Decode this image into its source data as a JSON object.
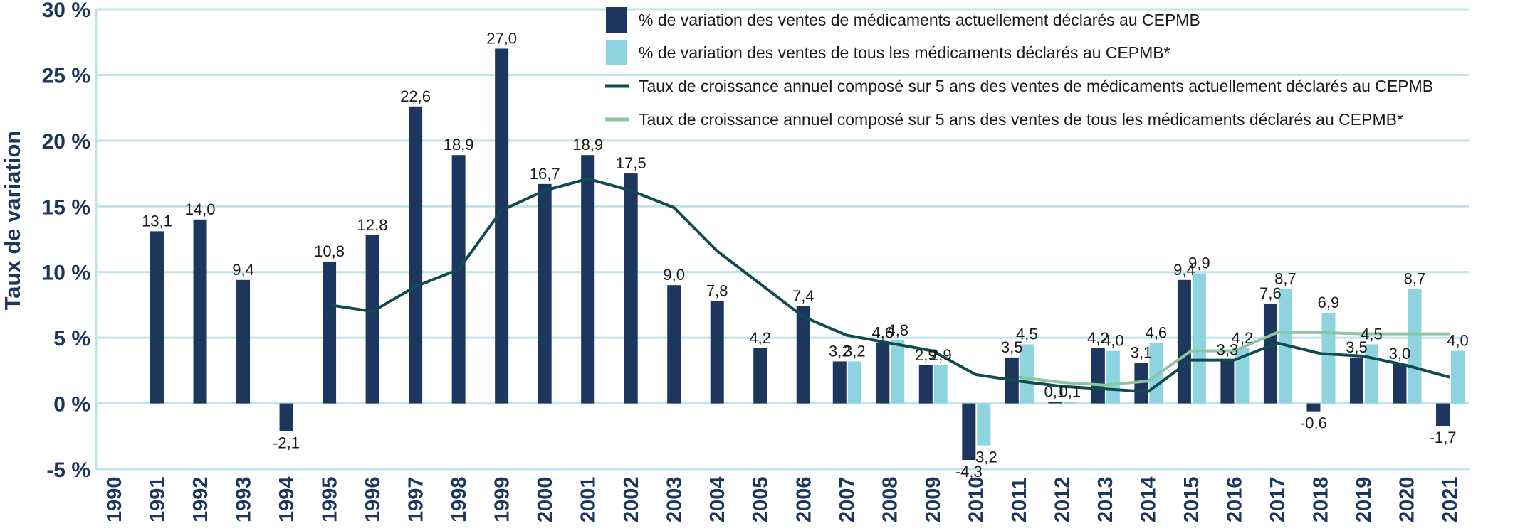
{
  "chart_data": {
    "type": "bar",
    "ylabel": "Taux de variation",
    "xlabel": "",
    "ylim": [
      -5,
      30
    ],
    "yticks": [
      -5,
      0,
      5,
      10,
      15,
      20,
      25,
      30
    ],
    "ytick_labels": [
      "-5 %",
      "0 %",
      "5 %",
      "10 %",
      "15 %",
      "20 %",
      "25 %",
      "30 %"
    ],
    "grid": true,
    "legend_position": "top-right",
    "categories": [
      "1990",
      "1991",
      "1992",
      "1993",
      "1994",
      "1995",
      "1996",
      "1997",
      "1998",
      "1999",
      "2000",
      "2001",
      "2002",
      "2003",
      "2004",
      "2005",
      "2006",
      "2007",
      "2008",
      "2009",
      "2010",
      "2011",
      "2012",
      "2013",
      "2014",
      "2015",
      "2016",
      "2017",
      "2018",
      "2019",
      "2020",
      "2021"
    ],
    "series": [
      {
        "name": "% de variation des ventes de médicaments actuellement déclarés au CEPMB",
        "kind": "bar",
        "color": "#1c365e",
        "values": [
          null,
          13.1,
          14.0,
          9.4,
          -2.1,
          10.8,
          12.8,
          22.6,
          18.9,
          27.0,
          16.7,
          18.9,
          17.5,
          9.0,
          7.8,
          4.2,
          7.4,
          3.2,
          4.6,
          2.9,
          -4.3,
          3.5,
          0.1,
          4.2,
          3.1,
          9.4,
          3.3,
          7.6,
          -0.6,
          3.5,
          3.0,
          -1.7
        ],
        "labels": [
          "",
          "13,1",
          "14,0",
          "9,4",
          "-2,1",
          "10,8",
          "12,8",
          "22,6",
          "18,9",
          "27,0",
          "16,7",
          "18,9",
          "17,5",
          "9,0",
          "7,8",
          "4,2",
          "7,4",
          "3,2",
          "4,6",
          "2,9",
          "-4,3",
          "3,5",
          "0,1",
          "4,2",
          "3,1",
          "9,4",
          "3,3",
          "7,6",
          "-0,6",
          "3,5",
          "3,0",
          "-1,7"
        ]
      },
      {
        "name": "% de variation des ventes de tous les médicaments déclarés au CEPMB*",
        "kind": "bar",
        "color": "#8dd3e0",
        "values": [
          null,
          null,
          null,
          null,
          null,
          null,
          null,
          null,
          null,
          null,
          null,
          null,
          null,
          null,
          null,
          null,
          null,
          3.2,
          4.8,
          2.9,
          -3.2,
          4.5,
          0.1,
          4.0,
          4.6,
          9.9,
          4.2,
          8.7,
          6.9,
          4.5,
          8.7,
          4.0
        ],
        "labels": [
          "",
          "",
          "",
          "",
          "",
          "",
          "",
          "",
          "",
          "",
          "",
          "",
          "",
          "",
          "",
          "",
          "",
          "3,2",
          "4,8",
          "2,9",
          "-3,2",
          "4,5",
          "0,1",
          "4,0",
          "4,6",
          "9,9",
          "4,2",
          "8,7",
          "6,9",
          "4,5",
          "8,7",
          "4,0"
        ]
      },
      {
        "name": "Taux de croissance annuel composé sur 5 ans des ventes de médicaments actuellement déclarés au CEPMB",
        "kind": "line",
        "color": "#114b4f",
        "values": [
          null,
          null,
          null,
          null,
          null,
          7.5,
          7.0,
          8.9,
          10.2,
          14.7,
          16.2,
          17.1,
          16.2,
          14.9,
          11.6,
          9.1,
          6.6,
          5.2,
          4.6,
          4.0,
          2.2,
          1.7,
          1.3,
          1.1,
          0.9,
          3.3,
          3.3,
          4.6,
          3.8,
          3.6,
          2.9,
          2.0
        ]
      },
      {
        "name": "Taux de croissance annuel composé sur 5 ans des ventes de tous les médicaments déclarés au CEPMB*",
        "kind": "line",
        "color": "#8cc5a1",
        "values": [
          null,
          null,
          null,
          null,
          null,
          null,
          null,
          null,
          null,
          null,
          null,
          null,
          null,
          null,
          null,
          null,
          null,
          null,
          null,
          null,
          null,
          2.0,
          1.6,
          1.4,
          1.7,
          4.0,
          4.0,
          5.4,
          5.4,
          5.3,
          5.3,
          5.3
        ]
      }
    ]
  }
}
